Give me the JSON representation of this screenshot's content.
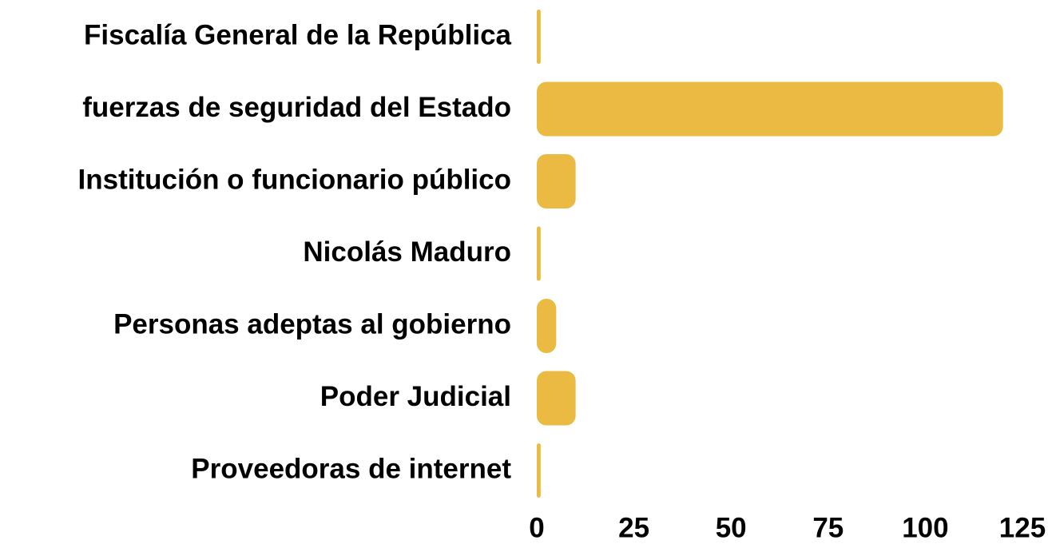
{
  "chart_data": {
    "type": "bar",
    "orientation": "horizontal",
    "categories": [
      "Fiscalía General de la República",
      "fuerzas de seguridad del Estado",
      "Institución o funcionario público",
      "Nicolás Maduro",
      "Personas adeptas al gobierno",
      "Poder Judicial",
      "Proveedoras de internet"
    ],
    "values": [
      1,
      120,
      10,
      1,
      5,
      10,
      1
    ],
    "color": "#ebba42",
    "xlim": [
      0,
      125
    ],
    "xticks": [
      0,
      25,
      50,
      75,
      100,
      125
    ],
    "grid": false
  }
}
